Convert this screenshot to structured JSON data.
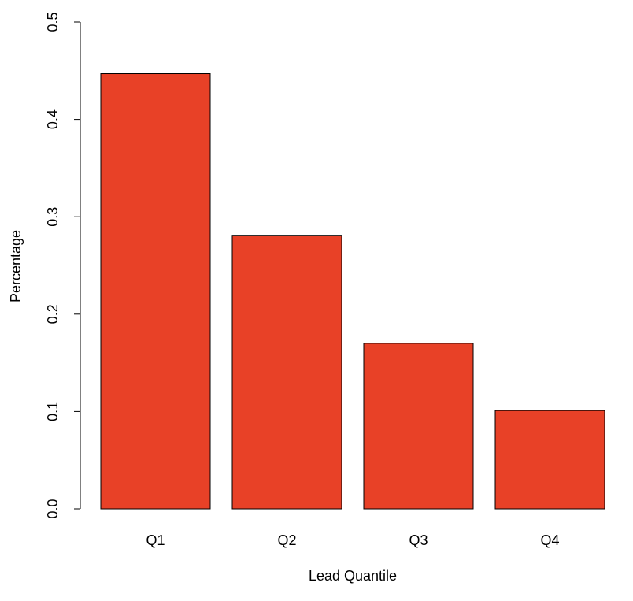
{
  "chart_data": {
    "type": "bar",
    "title": "",
    "xlabel": "Lead Quantile",
    "ylabel": "Percentage",
    "categories": [
      "Q1",
      "Q2",
      "Q3",
      "Q4"
    ],
    "values": [
      0.447,
      0.281,
      0.17,
      0.101
    ],
    "ylim": [
      0,
      0.5
    ],
    "yticks": [
      "0.0",
      "0.1",
      "0.2",
      "0.3",
      "0.4",
      "0.5"
    ],
    "bar_color": "#e84127",
    "bar_border_color": "#000000",
    "grid": false,
    "legend": "none"
  }
}
